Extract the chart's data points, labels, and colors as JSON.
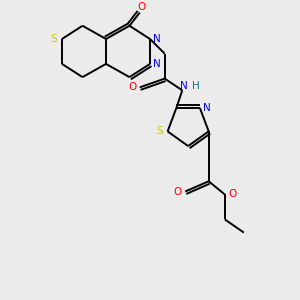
{
  "bg_color": "#ebebeb",
  "atom_colors": {
    "S": "#cccc00",
    "N": "#0000ff",
    "O": "#ff0000",
    "C": "#000000",
    "H": "#008080"
  },
  "lw": 1.4,
  "fontsize": 7.5
}
